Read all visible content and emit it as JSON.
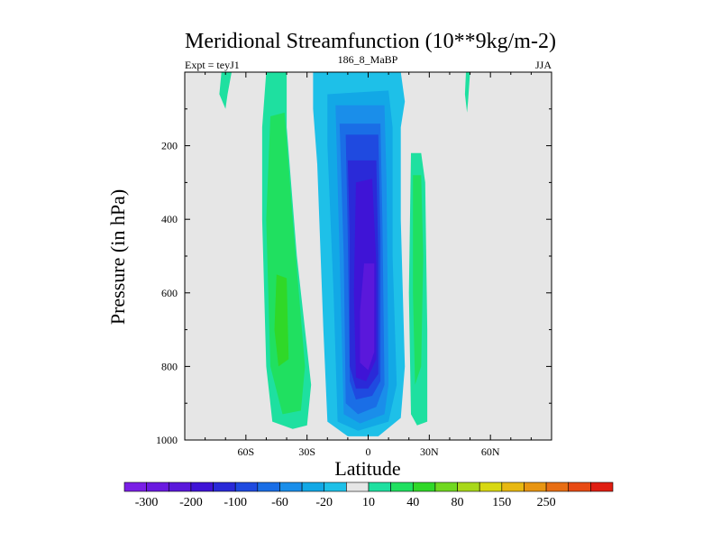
{
  "chart_data": {
    "type": "heatmap",
    "title": "Meridional Streamfunction (10**9kg/m-2)",
    "subtitle_left": "Expt = teyJ1",
    "subtitle_center": "186_8_MaBP",
    "subtitle_right": "JJA",
    "xlabel": "Latitude",
    "ylabel": "Pressure (in hPa)",
    "xlim": [
      -90,
      90
    ],
    "ylim": [
      1000,
      0
    ],
    "x_ticks": [
      {
        "value": -60,
        "label": "60S"
      },
      {
        "value": -30,
        "label": "30S"
      },
      {
        "value": 0,
        "label": "0"
      },
      {
        "value": 30,
        "label": "30N"
      },
      {
        "value": 60,
        "label": "60N"
      }
    ],
    "y_ticks": [
      {
        "value": 200,
        "label": "200"
      },
      {
        "value": 400,
        "label": "400"
      },
      {
        "value": 600,
        "label": "600"
      },
      {
        "value": 800,
        "label": "800"
      },
      {
        "value": 1000,
        "label": "1000"
      }
    ],
    "missing_color": "#e6e6e6",
    "colorbar": {
      "colors": [
        "#7a1fe6",
        "#6a1ae0",
        "#5a18db",
        "#3f14d6",
        "#2a2ad8",
        "#1f4ae0",
        "#1a6ee6",
        "#1a8eea",
        "#12a8e6",
        "#1ec0e8",
        "#e6e6e6",
        "#1ee0a0",
        "#20e060",
        "#30d828",
        "#70d820",
        "#a8d81a",
        "#d8d812",
        "#e8b812",
        "#e89512",
        "#e86e14",
        "#e84a14",
        "#e01e12"
      ],
      "labels": [
        {
          "after_index": 0,
          "label": "-300"
        },
        {
          "after_index": 2,
          "label": "-200"
        },
        {
          "after_index": 4,
          "label": "-100"
        },
        {
          "after_index": 6,
          "label": "-60"
        },
        {
          "after_index": 8,
          "label": "-20"
        },
        {
          "after_index": 10,
          "label": "10"
        },
        {
          "after_index": 12,
          "label": "40"
        },
        {
          "after_index": 14,
          "label": "80"
        },
        {
          "after_index": 16,
          "label": "150"
        },
        {
          "after_index": 18,
          "label": "250"
        }
      ]
    },
    "contour_regions": [
      {
        "name": "sh-outer-cell",
        "color": "#1ee0a0",
        "points": [
          [
            -50,
            0
          ],
          [
            -40,
            0
          ],
          [
            -40,
            150
          ],
          [
            -35,
            500
          ],
          [
            -28,
            850
          ],
          [
            -30,
            960
          ],
          [
            -37,
            970
          ],
          [
            -47,
            950
          ],
          [
            -50,
            800
          ],
          [
            -52,
            400
          ],
          [
            -52,
            150
          ]
        ]
      },
      {
        "name": "sh-inner-cell",
        "color": "#20e060",
        "points": [
          [
            -48,
            120
          ],
          [
            -41,
            110
          ],
          [
            -37,
            400
          ],
          [
            -31,
            800
          ],
          [
            -33,
            920
          ],
          [
            -42,
            930
          ],
          [
            -48,
            800
          ],
          [
            -50,
            400
          ]
        ]
      },
      {
        "name": "sh-core-cell",
        "color": "#30d828",
        "points": [
          [
            -45,
            550
          ],
          [
            -40,
            560
          ],
          [
            -39,
            780
          ],
          [
            -44,
            800
          ],
          [
            -46,
            700
          ]
        ]
      },
      {
        "name": "sh-highlat-patch",
        "color": "#1ee0a0",
        "points": [
          [
            -72,
            0
          ],
          [
            -67,
            0
          ],
          [
            -69,
            60
          ],
          [
            -70,
            100
          ],
          [
            -73,
            60
          ]
        ]
      },
      {
        "name": "nh-narrow-patch",
        "color": "#1ee0a0",
        "points": [
          [
            48,
            0
          ],
          [
            50,
            0
          ],
          [
            49,
            80
          ],
          [
            48.5,
            110
          ],
          [
            47.5,
            60
          ]
        ]
      },
      {
        "name": "equator-cell-1",
        "color": "#1ec0e8",
        "points": [
          [
            -27,
            0
          ],
          [
            16,
            0
          ],
          [
            18,
            80
          ],
          [
            16,
            150
          ],
          [
            16,
            400
          ],
          [
            18,
            800
          ],
          [
            16,
            940
          ],
          [
            5,
            990
          ],
          [
            -10,
            990
          ],
          [
            -20,
            950
          ],
          [
            -22,
            700
          ],
          [
            -25,
            250
          ],
          [
            -27,
            100
          ]
        ]
      },
      {
        "name": "equator-cell-2",
        "color": "#12a8e6",
        "points": [
          [
            -20,
            60
          ],
          [
            10,
            50
          ],
          [
            12,
            150
          ],
          [
            12,
            500
          ],
          [
            14,
            850
          ],
          [
            10,
            950
          ],
          [
            -5,
            975
          ],
          [
            -15,
            950
          ],
          [
            -17,
            600
          ],
          [
            -20,
            200
          ]
        ]
      },
      {
        "name": "equator-cell-3",
        "color": "#1a8eea",
        "points": [
          [
            -16,
            90
          ],
          [
            8,
            90
          ],
          [
            9,
            300
          ],
          [
            10,
            850
          ],
          [
            8,
            930
          ],
          [
            -4,
            955
          ],
          [
            -12,
            930
          ],
          [
            -14,
            500
          ]
        ]
      },
      {
        "name": "equator-cell-4",
        "color": "#1a6ee6",
        "points": [
          [
            -14,
            140
          ],
          [
            6,
            140
          ],
          [
            7,
            400
          ],
          [
            8,
            850
          ],
          [
            4,
            910
          ],
          [
            -5,
            930
          ],
          [
            -11,
            900
          ],
          [
            -12,
            500
          ]
        ]
      },
      {
        "name": "equator-cell-5",
        "color": "#1f4ae0",
        "points": [
          [
            -11,
            170
          ],
          [
            5,
            170
          ],
          [
            6,
            450
          ],
          [
            6,
            840
          ],
          [
            2,
            880
          ],
          [
            -6,
            890
          ],
          [
            -9,
            840
          ],
          [
            -10,
            450
          ]
        ]
      },
      {
        "name": "equator-cell-6",
        "color": "#2a2ad8",
        "points": [
          [
            -10,
            240
          ],
          [
            4,
            240
          ],
          [
            5,
            500
          ],
          [
            5,
            820
          ],
          [
            0,
            860
          ],
          [
            -6,
            860
          ],
          [
            -9,
            800
          ],
          [
            -9,
            450
          ]
        ]
      },
      {
        "name": "equator-cell-7",
        "color": "#3f14d6",
        "points": [
          [
            -6,
            300
          ],
          [
            2,
            290
          ],
          [
            4,
            520
          ],
          [
            4,
            780
          ],
          [
            -1,
            840
          ],
          [
            -6,
            830
          ],
          [
            -7,
            600
          ]
        ]
      },
      {
        "name": "equator-cell-8",
        "color": "#5a18db",
        "points": [
          [
            -2,
            520
          ],
          [
            3,
            520
          ],
          [
            3,
            760
          ],
          [
            0,
            810
          ],
          [
            -4,
            790
          ],
          [
            -4,
            650
          ]
        ]
      },
      {
        "name": "nh-subtropical-outer",
        "color": "#1ee0a0",
        "points": [
          [
            21,
            220
          ],
          [
            26,
            220
          ],
          [
            28,
            300
          ],
          [
            29,
            700
          ],
          [
            29,
            950
          ],
          [
            24,
            960
          ],
          [
            21,
            930
          ],
          [
            20,
            600
          ]
        ]
      },
      {
        "name": "nh-subtropical-inner",
        "color": "#20e060",
        "points": [
          [
            22,
            280
          ],
          [
            26,
            280
          ],
          [
            27,
            500
          ],
          [
            26,
            800
          ],
          [
            23,
            850
          ],
          [
            22,
            600
          ]
        ]
      }
    ]
  }
}
